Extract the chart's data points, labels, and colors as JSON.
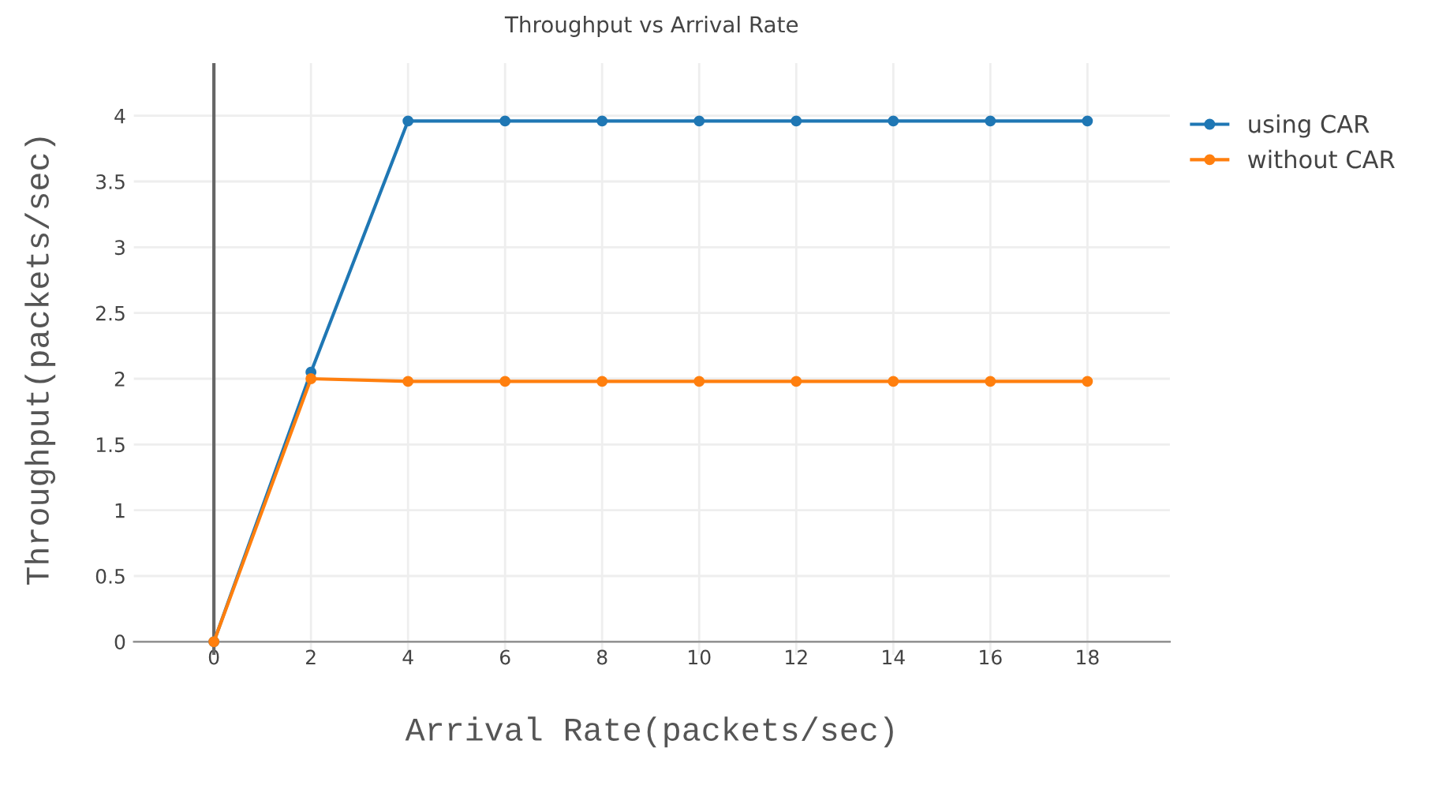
{
  "chart_data": {
    "type": "line",
    "title": "Throughput vs Arrival Rate",
    "xlabel": "Arrival Rate(packets/sec)",
    "ylabel": "Throughput(packets/sec)",
    "x": [
      0,
      2,
      4,
      6,
      8,
      10,
      12,
      14,
      16,
      18
    ],
    "series": [
      {
        "name": "using CAR",
        "color": "#1f77b4",
        "values": [
          0,
          2.05,
          3.96,
          3.96,
          3.96,
          3.96,
          3.96,
          3.96,
          3.96,
          3.96
        ]
      },
      {
        "name": "without CAR",
        "color": "#ff7f0e",
        "values": [
          0,
          2.0,
          1.98,
          1.98,
          1.98,
          1.98,
          1.98,
          1.98,
          1.98,
          1.98
        ]
      }
    ],
    "xlim": [
      -1.65,
      19.7
    ],
    "xticks": [
      0,
      2,
      4,
      6,
      8,
      10,
      12,
      14,
      16,
      18
    ],
    "ylim": [
      -0.1,
      4.4
    ],
    "yticks": [
      0,
      0.5,
      1,
      1.5,
      2,
      2.5,
      3,
      3.5,
      4
    ],
    "grid": true,
    "legend": "top right",
    "marker": "circle",
    "line_style": "solid"
  }
}
